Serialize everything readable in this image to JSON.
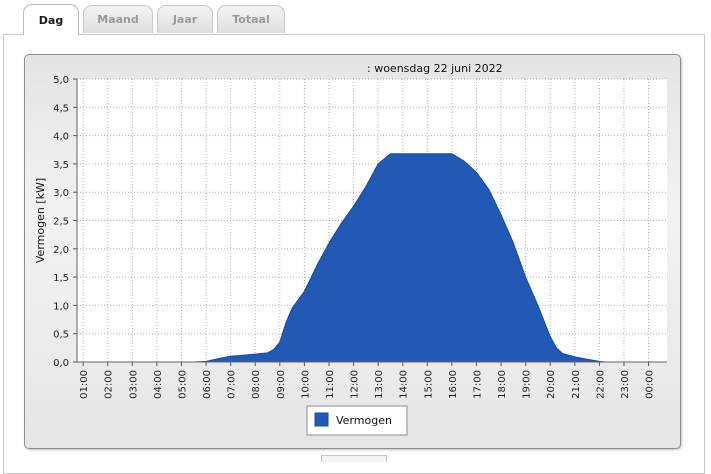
{
  "tabs": [
    {
      "label": "Dag",
      "active": true
    },
    {
      "label": "Maand",
      "active": false
    },
    {
      "label": "Jaar",
      "active": false
    },
    {
      "label": "Totaal",
      "active": false
    }
  ],
  "colors": {
    "series_fill": "#2259b5",
    "plot_background": "#ffffff",
    "grid": "#b0b0b0"
  },
  "chart_data": {
    "type": "area",
    "title": ": woensdag 22 juni 2022",
    "xlabel": "",
    "ylabel": "Vermogen [kW]",
    "ylim": [
      0,
      5
    ],
    "yticks": [
      "0,0",
      "0,5",
      "1,0",
      "1,5",
      "2,0",
      "2,5",
      "3,0",
      "3,5",
      "4,0",
      "4,5",
      "5,0"
    ],
    "xticks": [
      "01:00",
      "02:00",
      "03:00",
      "04:00",
      "05:00",
      "06:00",
      "07:00",
      "08:00",
      "09:00",
      "10:00",
      "11:00",
      "12:00",
      "13:00",
      "14:00",
      "15:00",
      "16:00",
      "17:00",
      "18:00",
      "19:00",
      "20:00",
      "21:00",
      "22:00",
      "23:00",
      "00:00"
    ],
    "grid": true,
    "legend_position": "bottom",
    "series": [
      {
        "name": "Vermogen",
        "points": [
          [
            "05:15",
            0.0
          ],
          [
            "05:30",
            0.0
          ],
          [
            "06:00",
            0.01
          ],
          [
            "06:30",
            0.06
          ],
          [
            "07:00",
            0.1
          ],
          [
            "07:30",
            0.12
          ],
          [
            "08:00",
            0.14
          ],
          [
            "08:30",
            0.16
          ],
          [
            "08:45",
            0.22
          ],
          [
            "09:00",
            0.35
          ],
          [
            "09:15",
            0.7
          ],
          [
            "09:30",
            0.95
          ],
          [
            "10:00",
            1.25
          ],
          [
            "10:30",
            1.7
          ],
          [
            "11:00",
            2.1
          ],
          [
            "11:30",
            2.45
          ],
          [
            "12:00",
            2.75
          ],
          [
            "12:30",
            3.1
          ],
          [
            "13:00",
            3.5
          ],
          [
            "13:30",
            3.68
          ],
          [
            "14:00",
            3.68
          ],
          [
            "15:00",
            3.68
          ],
          [
            "16:00",
            3.68
          ],
          [
            "16:30",
            3.55
          ],
          [
            "17:00",
            3.35
          ],
          [
            "17:30",
            3.05
          ],
          [
            "18:00",
            2.6
          ],
          [
            "18:30",
            2.1
          ],
          [
            "19:00",
            1.5
          ],
          [
            "19:30",
            1.0
          ],
          [
            "20:00",
            0.45
          ],
          [
            "20:15",
            0.25
          ],
          [
            "20:30",
            0.15
          ],
          [
            "21:00",
            0.09
          ],
          [
            "21:30",
            0.05
          ],
          [
            "22:00",
            0.01
          ],
          [
            "22:15",
            0.0
          ]
        ]
      }
    ]
  }
}
